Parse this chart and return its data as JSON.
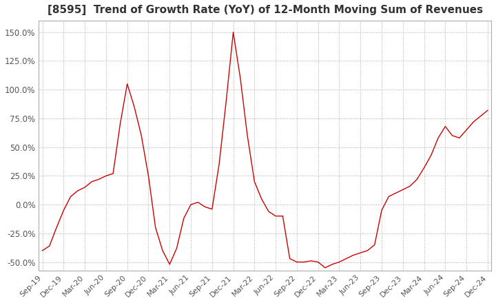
{
  "title": "[8595]  Trend of Growth Rate (YoY) of 12-Month Moving Sum of Revenues",
  "title_fontsize": 11,
  "line_color": "#cc0000",
  "background_color": "#ffffff",
  "grid_color": "#aaaaaa",
  "ylim": [
    -0.575,
    1.6
  ],
  "yticks": [
    -0.5,
    -0.25,
    0.0,
    0.25,
    0.5,
    0.75,
    1.0,
    1.25,
    1.5
  ],
  "ytick_labels": [
    "-50.0%",
    "-25.0%",
    "0.0%",
    "25.0%",
    "50.0%",
    "75.0%",
    "100.0%",
    "125.0%",
    "150.0%"
  ],
  "values": [
    -0.4,
    -0.36,
    -0.2,
    -0.05,
    0.07,
    0.12,
    0.15,
    0.2,
    0.22,
    0.25,
    0.27,
    0.7,
    1.05,
    0.85,
    0.6,
    0.25,
    -0.2,
    -0.4,
    -0.52,
    -0.38,
    -0.12,
    0.0,
    0.02,
    -0.02,
    -0.04,
    0.35,
    0.9,
    1.5,
    1.1,
    0.6,
    0.2,
    0.05,
    -0.06,
    -0.1,
    -0.1,
    -0.47,
    -0.5,
    -0.5,
    -0.49,
    -0.5,
    -0.55,
    -0.52,
    -0.5,
    -0.47,
    -0.44,
    -0.42,
    -0.4,
    -0.35,
    -0.05,
    0.07,
    0.1,
    0.13,
    0.16,
    0.22,
    0.32,
    0.43,
    0.58,
    0.68,
    0.6,
    0.58,
    0.65,
    0.72,
    0.77,
    0.82
  ],
  "xtick_positions": [
    0,
    3,
    6,
    9,
    12,
    15,
    18,
    21,
    24,
    27,
    30,
    33,
    36,
    39,
    42,
    45,
    48,
    51,
    54,
    57,
    60,
    63
  ],
  "xtick_labels": [
    "Sep-19",
    "Dec-19",
    "Mar-20",
    "Jun-20",
    "Sep-20",
    "Dec-20",
    "Mar-21",
    "Jun-21",
    "Sep-21",
    "Dec-21",
    "Mar-22",
    "Jun-22",
    "Sep-22",
    "Dec-22",
    "Mar-23",
    "Jun-23",
    "Sep-23",
    "Dec-23",
    "Mar-24",
    "Jun-24",
    "Sep-24",
    "Dec-24"
  ]
}
